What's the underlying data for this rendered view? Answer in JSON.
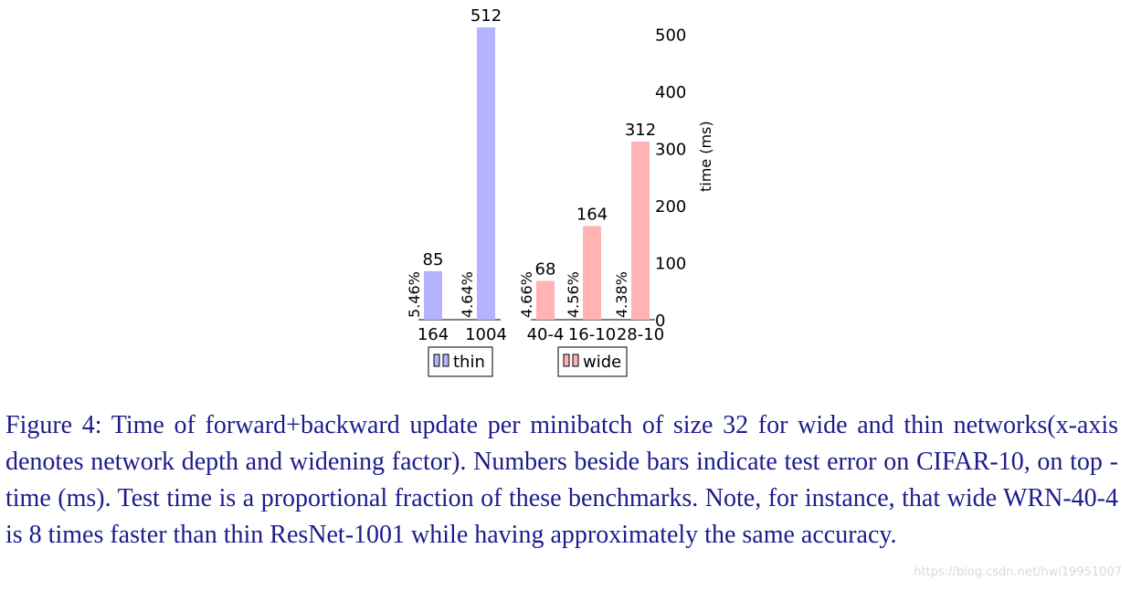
{
  "chart_data": {
    "type": "bar",
    "ylabel": "time (ms)",
    "ylim": [
      0,
      500
    ],
    "yticks": [
      0,
      100,
      200,
      300,
      400,
      500
    ],
    "groups": [
      {
        "name": "thin",
        "color": "#b3b3ff",
        "bars": [
          {
            "category": "164",
            "value": 85,
            "error": "5.46%"
          },
          {
            "category": "1004",
            "value": 512,
            "error": "4.64%"
          }
        ]
      },
      {
        "name": "wide",
        "color": "#ffb3b3",
        "bars": [
          {
            "category": "40-4",
            "value": 68,
            "error": "4.66%"
          },
          {
            "category": "16-10",
            "value": 164,
            "error": "4.56%"
          },
          {
            "category": "28-10",
            "value": 312,
            "error": "4.38%"
          }
        ]
      }
    ]
  },
  "caption": "Figure 4: Time of forward+backward update per minibatch of size 32 for wide and thin networks(x-axis denotes network depth and widening factor). Numbers beside bars indicate test error on CIFAR-10, on top - time (ms). Test time is a proportional fraction of these benchmarks. Note, for instance, that wide WRN-40-4 is 8 times faster than thin ResNet-1001 while having approximately the same accuracy.",
  "watermark": "https://blog.csdn.net/hwl19951007"
}
